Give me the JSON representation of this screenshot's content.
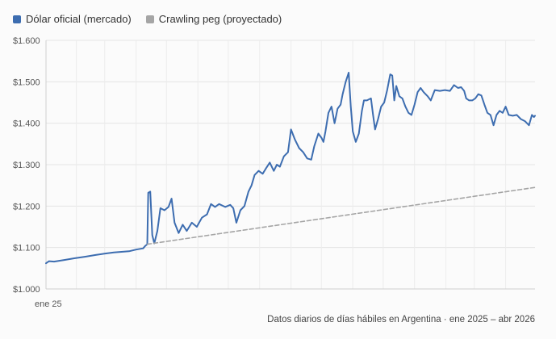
{
  "legend": {
    "market": {
      "label": "Dólar oficial (mercado)",
      "color": "#3d6db0"
    },
    "peg": {
      "label": "Crawling peg (proyectado)",
      "color": "#a5a5a5"
    }
  },
  "footnote": "Datos diarios de días hábiles en Argentina · ene 2025 – abr 2026",
  "chart_data": {
    "type": "line",
    "x_axis_label": "ene 25",
    "ylim": [
      1000,
      1600
    ],
    "y_ticks": [
      {
        "value": 1000,
        "label": "$1.000"
      },
      {
        "value": 1100,
        "label": "$1.100"
      },
      {
        "value": 1200,
        "label": "$1.200"
      },
      {
        "value": 1300,
        "label": "$1.300"
      },
      {
        "value": 1400,
        "label": "$1.400"
      },
      {
        "value": 1500,
        "label": "$1.500"
      },
      {
        "value": 1600,
        "label": "$1.600"
      }
    ],
    "x_range": [
      "2025-01-02",
      "2026-04-30"
    ],
    "grid": true,
    "series": [
      {
        "name": "Dólar oficial (mercado)",
        "style": "solid",
        "color": "#3d6db0",
        "points": [
          [
            "2025-01-02",
            1062
          ],
          [
            "2025-01-05",
            1067
          ],
          [
            "2025-01-10",
            1066
          ],
          [
            "2025-01-20",
            1070
          ],
          [
            "2025-01-30",
            1074
          ],
          [
            "2025-02-10",
            1078
          ],
          [
            "2025-02-20",
            1082
          ],
          [
            "2025-02-28",
            1085
          ],
          [
            "2025-03-10",
            1088
          ],
          [
            "2025-03-25",
            1091
          ],
          [
            "2025-04-01",
            1095
          ],
          [
            "2025-04-08",
            1098
          ],
          [
            "2025-04-10",
            1104
          ],
          [
            "2025-04-12",
            1108
          ],
          [
            "2025-04-13",
            1232
          ],
          [
            "2025-04-15",
            1235
          ],
          [
            "2025-04-17",
            1130
          ],
          [
            "2025-04-19",
            1110
          ],
          [
            "2025-04-22",
            1140
          ],
          [
            "2025-04-25",
            1195
          ],
          [
            "2025-04-29",
            1190
          ],
          [
            "2025-05-03",
            1198
          ],
          [
            "2025-05-06",
            1218
          ],
          [
            "2025-05-09",
            1160
          ],
          [
            "2025-05-13",
            1135
          ],
          [
            "2025-05-17",
            1155
          ],
          [
            "2025-05-21",
            1140
          ],
          [
            "2025-05-26",
            1160
          ],
          [
            "2025-05-31",
            1150
          ],
          [
            "2025-06-05",
            1172
          ],
          [
            "2025-06-10",
            1180
          ],
          [
            "2025-06-14",
            1205
          ],
          [
            "2025-06-18",
            1198
          ],
          [
            "2025-06-22",
            1205
          ],
          [
            "2025-06-28",
            1198
          ],
          [
            "2025-07-03",
            1203
          ],
          [
            "2025-07-06",
            1195
          ],
          [
            "2025-07-09",
            1160
          ],
          [
            "2025-07-13",
            1190
          ],
          [
            "2025-07-17",
            1200
          ],
          [
            "2025-07-21",
            1235
          ],
          [
            "2025-07-24",
            1250
          ],
          [
            "2025-07-27",
            1275
          ],
          [
            "2025-07-31",
            1285
          ],
          [
            "2025-08-04",
            1278
          ],
          [
            "2025-08-07",
            1290
          ],
          [
            "2025-08-11",
            1305
          ],
          [
            "2025-08-15",
            1285
          ],
          [
            "2025-08-18",
            1300
          ],
          [
            "2025-08-21",
            1295
          ],
          [
            "2025-08-25",
            1320
          ],
          [
            "2025-08-29",
            1330
          ],
          [
            "2025-09-01",
            1385
          ],
          [
            "2025-09-05",
            1360
          ],
          [
            "2025-09-09",
            1340
          ],
          [
            "2025-09-13",
            1330
          ],
          [
            "2025-09-17",
            1315
          ],
          [
            "2025-09-21",
            1312
          ],
          [
            "2025-09-24",
            1345
          ],
          [
            "2025-09-28",
            1375
          ],
          [
            "2025-10-01",
            1365
          ],
          [
            "2025-10-03",
            1355
          ],
          [
            "2025-10-05",
            1380
          ],
          [
            "2025-10-08",
            1425
          ],
          [
            "2025-10-11",
            1440
          ],
          [
            "2025-10-14",
            1400
          ],
          [
            "2025-10-17",
            1435
          ],
          [
            "2025-10-20",
            1445
          ],
          [
            "2025-10-22",
            1470
          ],
          [
            "2025-10-25",
            1500
          ],
          [
            "2025-10-28",
            1522
          ],
          [
            "2025-10-30",
            1440
          ],
          [
            "2025-11-01",
            1380
          ],
          [
            "2025-11-04",
            1355
          ],
          [
            "2025-11-07",
            1375
          ],
          [
            "2025-11-10",
            1430
          ],
          [
            "2025-11-12",
            1455
          ],
          [
            "2025-11-15",
            1455
          ],
          [
            "2025-11-19",
            1460
          ],
          [
            "2025-11-21",
            1420
          ],
          [
            "2025-11-23",
            1385
          ],
          [
            "2025-11-26",
            1410
          ],
          [
            "2025-11-29",
            1440
          ],
          [
            "2025-12-02",
            1450
          ],
          [
            "2025-12-05",
            1480
          ],
          [
            "2025-12-08",
            1518
          ],
          [
            "2025-12-10",
            1515
          ],
          [
            "2025-12-12",
            1455
          ],
          [
            "2025-12-14",
            1490
          ],
          [
            "2025-12-17",
            1465
          ],
          [
            "2025-12-20",
            1460
          ],
          [
            "2025-12-23",
            1440
          ],
          [
            "2025-12-26",
            1425
          ],
          [
            "2025-12-29",
            1420
          ],
          [
            "2026-01-01",
            1445
          ],
          [
            "2026-01-04",
            1475
          ],
          [
            "2026-01-07",
            1485
          ],
          [
            "2026-01-10",
            1475
          ],
          [
            "2026-01-14",
            1465
          ],
          [
            "2026-01-17",
            1455
          ],
          [
            "2026-01-21",
            1480
          ],
          [
            "2026-01-26",
            1478
          ],
          [
            "2026-01-31",
            1480
          ],
          [
            "2026-02-05",
            1478
          ],
          [
            "2026-02-09",
            1492
          ],
          [
            "2026-02-13",
            1485
          ],
          [
            "2026-02-16",
            1487
          ],
          [
            "2026-02-19",
            1478
          ],
          [
            "2026-02-21",
            1460
          ],
          [
            "2026-02-24",
            1455
          ],
          [
            "2026-02-27",
            1455
          ],
          [
            "2026-03-02",
            1460
          ],
          [
            "2026-03-05",
            1470
          ],
          [
            "2026-03-08",
            1467
          ],
          [
            "2026-03-11",
            1445
          ],
          [
            "2026-03-14",
            1425
          ],
          [
            "2026-03-17",
            1420
          ],
          [
            "2026-03-20",
            1395
          ],
          [
            "2026-03-23",
            1420
          ],
          [
            "2026-03-26",
            1430
          ],
          [
            "2026-03-29",
            1425
          ],
          [
            "2026-04-01",
            1440
          ],
          [
            "2026-04-04",
            1420
          ],
          [
            "2026-04-08",
            1418
          ],
          [
            "2026-04-12",
            1420
          ],
          [
            "2026-04-16",
            1410
          ],
          [
            "2026-04-20",
            1405
          ],
          [
            "2026-04-24",
            1395
          ],
          [
            "2026-04-27",
            1420
          ],
          [
            "2026-04-29",
            1415
          ],
          [
            "2026-04-30",
            1418
          ]
        ]
      },
      {
        "name": "Crawling peg (proyectado)",
        "style": "dashed",
        "color": "#a5a5a5",
        "points": [
          [
            "2025-04-12",
            1108
          ],
          [
            "2026-04-30",
            1245
          ]
        ]
      }
    ]
  }
}
